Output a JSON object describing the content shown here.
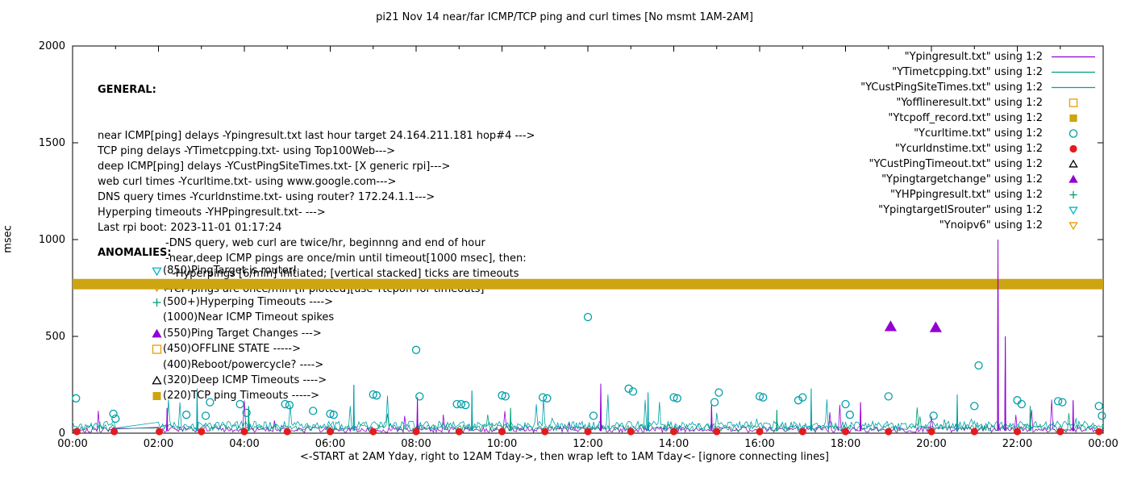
{
  "title": "pi21 Nov 14  near/far ICMP/TCP ping and curl times [No msmt 1AM-2AM]",
  "axis": {
    "ylabel": "msec",
    "xlabel": "<-START at 2AM Yday, right to 12AM Tday->, then wrap left to 1AM Tday<- [ignore connecting lines]",
    "yticks": [
      0,
      500,
      1000,
      1500,
      2000
    ],
    "xtick_labels": [
      "00:00",
      "02:00",
      "04:00",
      "06:00",
      "08:00",
      "10:00",
      "12:00",
      "14:00",
      "16:00",
      "18:00",
      "20:00",
      "22:00",
      "00:00"
    ]
  },
  "general": {
    "heading": "GENERAL:",
    "lines": [
      {
        "indent": 0,
        "text": "near ICMP[ping] delays -Ypingresult.txt last hour target 24.164.211.181 hop#4 --->"
      },
      {
        "indent": 0,
        "text": "TCP ping delays -YTimetcpping.txt- using Top100Web--->"
      },
      {
        "indent": 0,
        "text": "deep ICMP[ping] delays -YCustPingSiteTimes.txt- [X generic rpi]--->"
      },
      {
        "indent": 0,
        "text": "web curl times -Ycurltime.txt- using www.google.com--->"
      },
      {
        "indent": 0,
        "text": "DNS query times -Ycurldnstime.txt- using router? 172.24.1.1--->"
      },
      {
        "indent": 0,
        "text": "Hyperping timeouts -YHPpingresult.txt- --->"
      },
      {
        "indent": 0,
        "text": "Last rpi boot: 2023-11-01 01:17:24"
      },
      {
        "indent": 1,
        "text": "-DNS query, web curl are twice/hr, beginnng and end of hour"
      },
      {
        "indent": 1,
        "text": "-near,deep ICMP pings are once/min until timeout[1000 msec], then:"
      },
      {
        "indent": 2,
        "text": "-Hyperpings [6/min] initiated; [vertical stacked] ticks are timeouts"
      },
      {
        "indent": 1,
        "text": "-TCP pings are once/min [if plotted][use Ytcpoff for timeouts]"
      }
    ]
  },
  "anomalies": {
    "heading": "ANOMALIES:",
    "rows": [
      {
        "marker": "tri-down-open",
        "color": "#00B6C8",
        "text": "(850)PingTarget is router!"
      },
      {
        "marker": "tri-down-open",
        "color": "#E69F00",
        "text": "(735)"
      },
      {
        "marker": "plus",
        "color": "#009E73",
        "text": "(500+)Hyperping Timeouts ---->"
      },
      {
        "marker": "none",
        "color": "#000000",
        "text": "(1000)Near ICMP Timeout spikes"
      },
      {
        "marker": "tri-up-filled",
        "color": "#9400D3",
        "text": "(550)Ping Target Changes --->"
      },
      {
        "marker": "square-open",
        "color": "#E69F00",
        "text": "(450)OFFLINE STATE ----->"
      },
      {
        "marker": "none",
        "color": "#000000",
        "text": "(400)Reboot/powercycle? ---->"
      },
      {
        "marker": "tri-up-open",
        "color": "#000000",
        "text": "(320)Deep ICMP Timeouts ---->"
      },
      {
        "marker": "square-filled",
        "color": "#CDA411",
        "text": "(220)TCP ping Timeouts ----->"
      }
    ]
  },
  "legend": {
    "rows": [
      {
        "label": "\"Ypingresult.txt\" using 1:2",
        "marker": "line",
        "color": "#9400D3"
      },
      {
        "label": "\"YTimetcpping.txt\" using 1:2",
        "marker": "line",
        "color": "#009E73"
      },
      {
        "label": "\"YCustPingSiteTimes.txt\" using 1:2",
        "marker": "line",
        "color": "#009FA8"
      },
      {
        "label": "\"Yofflineresult.txt\" using 1:2",
        "marker": "square-open",
        "color": "#E69F00"
      },
      {
        "label": "\"Ytcpoff_record.txt\" using 1:2",
        "marker": "square-filled",
        "color": "#CDA411"
      },
      {
        "label": "\"Ycurltime.txt\" using 1:2",
        "marker": "circle-open",
        "color": "#009FA8"
      },
      {
        "label": "\"Ycurldnstime.txt\" using 1:2",
        "marker": "circle-filled",
        "color": "#E41A1C"
      },
      {
        "label": "\"YCustPingTimeout.txt\" using 1:2",
        "marker": "tri-up-open",
        "color": "#000000"
      },
      {
        "label": "\"Ypingtargetchange\" using 1:2",
        "marker": "tri-up-filled",
        "color": "#9400D3"
      },
      {
        "label": "\"YHPpingresult.txt\" using 1:2",
        "marker": "plus",
        "color": "#009E73"
      },
      {
        "label": "\"YpingtargetISrouter\" using 1:2",
        "marker": "tri-down-open",
        "color": "#00B6C8"
      },
      {
        "label": "\"Ynoipv6\" using 1:2",
        "marker": "tri-down-open",
        "color": "#E69F00"
      }
    ]
  },
  "chart_data": {
    "type": "line",
    "title": "pi21 Nov 14  near/far ICMP/TCP ping and curl times [No msmt 1AM-2AM]",
    "xlabel": "<-START at 2AM Yday, right to 12AM Tday->, then wrap left to 1AM Tday<- [ignore connecting lines]",
    "ylabel": "msec",
    "ylim": [
      0,
      2000
    ],
    "xlim_hours": [
      0,
      24
    ],
    "gap_hours": [
      1,
      2
    ],
    "grid": false,
    "legend_position": "top-right",
    "series": [
      {
        "name": "Ypingresult.txt near-ICMP ping delay",
        "style": "noisy-line",
        "color": "#9400D3",
        "seed": 101,
        "baseline_msec": [
          4,
          34
        ],
        "spike_prob": 0.018,
        "spike_max": 150,
        "spikes": [
          [
            2.2,
            130
          ],
          [
            8.03,
            185
          ],
          [
            12.3,
            255
          ],
          [
            14.88,
            150
          ],
          [
            18.35,
            160
          ],
          [
            21.55,
            1000
          ],
          [
            21.72,
            500
          ],
          [
            23.3,
            170
          ]
        ]
      },
      {
        "name": "YTimetcpping.txt TCP ping delay",
        "style": "noisy-line",
        "color": "#009E73",
        "seed": 202,
        "baseline_msec": [
          12,
          45
        ],
        "spike_prob": 0.012,
        "spike_max": 95,
        "spikes": [
          [
            4.1,
            140
          ],
          [
            10.2,
            130
          ],
          [
            16.4,
            120
          ],
          [
            22.3,
            140
          ]
        ]
      },
      {
        "name": "YCustPingSiteTimes.txt deep-ICMP delay",
        "style": "noisy-line",
        "color": "#009FA8",
        "seed": 303,
        "baseline_msec": [
          20,
          62
        ],
        "spike_prob": 0.028,
        "spike_max": 170,
        "spikes": [
          [
            2.9,
            230
          ],
          [
            6.55,
            250
          ],
          [
            9.3,
            220
          ],
          [
            13.4,
            210
          ],
          [
            17.2,
            230
          ],
          [
            20.6,
            200
          ]
        ]
      },
      {
        "name": "Ytcpoff_record.txt offline band",
        "style": "hband",
        "color": "#CDA411",
        "y_msec": 770,
        "half_height_msec": 27
      },
      {
        "name": "Ycurltime.txt web curl times",
        "style": "scatter",
        "marker": "circle-open",
        "color": "#009FA8",
        "size": 4.5,
        "point_name": "curl-time-point",
        "points": [
          [
            0.08,
            180
          ],
          [
            0.95,
            100
          ],
          [
            1.0,
            75
          ],
          [
            2.65,
            95
          ],
          [
            3.1,
            90
          ],
          [
            3.2,
            160
          ],
          [
            3.9,
            150
          ],
          [
            4.05,
            105
          ],
          [
            4.95,
            150
          ],
          [
            5.05,
            145
          ],
          [
            5.6,
            115
          ],
          [
            6.0,
            100
          ],
          [
            6.08,
            95
          ],
          [
            7.0,
            200
          ],
          [
            7.08,
            195
          ],
          [
            8.0,
            430
          ],
          [
            8.08,
            190
          ],
          [
            8.95,
            150
          ],
          [
            9.05,
            150
          ],
          [
            9.15,
            145
          ],
          [
            10.0,
            195
          ],
          [
            10.08,
            190
          ],
          [
            10.95,
            185
          ],
          [
            11.05,
            180
          ],
          [
            12.0,
            600
          ],
          [
            12.13,
            90
          ],
          [
            12.95,
            230
          ],
          [
            13.05,
            215
          ],
          [
            14.0,
            185
          ],
          [
            14.08,
            180
          ],
          [
            14.95,
            160
          ],
          [
            15.05,
            210
          ],
          [
            16.0,
            190
          ],
          [
            16.08,
            185
          ],
          [
            16.9,
            170
          ],
          [
            17.0,
            185
          ],
          [
            18.0,
            150
          ],
          [
            18.1,
            95
          ],
          [
            19.0,
            190
          ],
          [
            20.05,
            90
          ],
          [
            21.0,
            140
          ],
          [
            21.1,
            350
          ],
          [
            22.0,
            170
          ],
          [
            22.1,
            150
          ],
          [
            22.95,
            165
          ],
          [
            23.05,
            160
          ],
          [
            23.9,
            140
          ],
          [
            23.97,
            90
          ]
        ]
      },
      {
        "name": "Ycurldnstime.txt DNS query times",
        "style": "scatter",
        "marker": "circle-filled",
        "color": "#E41A1C",
        "size": 4.5,
        "point_name": "dns-time-point",
        "points": [
          [
            0.1,
            8
          ],
          [
            0.97,
            8
          ],
          [
            2.02,
            8
          ],
          [
            3,
            8
          ],
          [
            4,
            8
          ],
          [
            5,
            8
          ],
          [
            6,
            8
          ],
          [
            7,
            8
          ],
          [
            8,
            8
          ],
          [
            9,
            8
          ],
          [
            10,
            8
          ],
          [
            11,
            8
          ],
          [
            12,
            8
          ],
          [
            13,
            8
          ],
          [
            14,
            8
          ],
          [
            15,
            8
          ],
          [
            16,
            8
          ],
          [
            17,
            8
          ],
          [
            18,
            8
          ],
          [
            19,
            8
          ],
          [
            20,
            8
          ],
          [
            21,
            8
          ],
          [
            22,
            8
          ],
          [
            23,
            8
          ],
          [
            23.9,
            8
          ]
        ]
      },
      {
        "name": "Ypingtargetchange events",
        "style": "scatter",
        "marker": "tri-up-filled",
        "color": "#9400D3",
        "size": 6.5,
        "point_name": "ping-target-change-point",
        "points": [
          [
            19.05,
            550
          ],
          [
            20.1,
            545
          ]
        ]
      }
    ]
  }
}
